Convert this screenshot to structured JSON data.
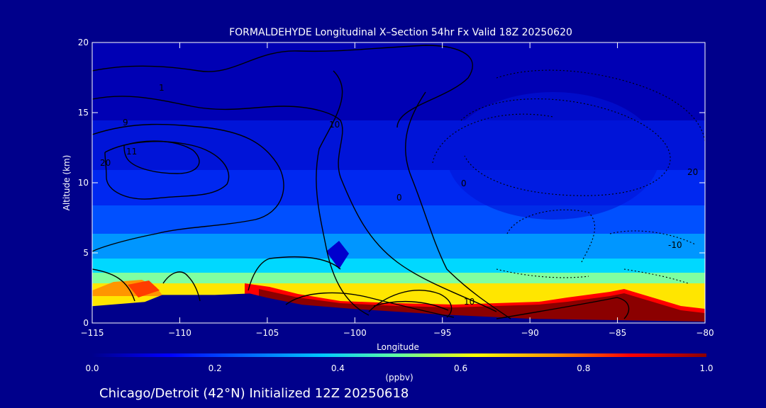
{
  "chart_data": {
    "type": "heatmap",
    "title": "FORMALDEHYDE Longitudinal X–Section 54hr  Fx Valid 18Z 20250620",
    "xlabel": "Longitude",
    "ylabel": "Altitude (km)",
    "xlim": [
      -115,
      -80
    ],
    "ylim": [
      0,
      20
    ],
    "x_ticks": [
      "−115",
      "−110",
      "−105",
      "−100",
      "−95",
      "−90",
      "−85",
      "−80"
    ],
    "y_ticks": [
      "0",
      "5",
      "10",
      "15",
      "20"
    ],
    "colorbar": {
      "label": "(ppbv)",
      "range": [
        0.0,
        1.0
      ],
      "ticks": [
        "0.0",
        "0.2",
        "0.4",
        "0.6",
        "0.8",
        "1.0"
      ],
      "colors": [
        "#00008b",
        "#0000ff",
        "#0064ff",
        "#00c8ff",
        "#64ffa0",
        "#ffff00",
        "#ff9600",
        "#ff0000",
        "#8b0000"
      ]
    },
    "terrain": [
      {
        "lon": -115,
        "alt": 1.2
      },
      {
        "lon": -112,
        "alt": 1.5
      },
      {
        "lon": -111,
        "alt": 2.0
      },
      {
        "lon": -108,
        "alt": 2.0
      },
      {
        "lon": -106,
        "alt": 2.1
      },
      {
        "lon": -105,
        "alt": 1.8
      },
      {
        "lon": -103,
        "alt": 1.3
      },
      {
        "lon": -100,
        "alt": 1.0
      },
      {
        "lon": -95,
        "alt": 0.6
      },
      {
        "lon": -90,
        "alt": 0.3
      },
      {
        "lon": -85,
        "alt": 0.2
      },
      {
        "lon": -80,
        "alt": 0.1
      }
    ],
    "near_surface_hcho_ppbv": [
      {
        "lon": -114,
        "value": 0.62
      },
      {
        "lon": -112,
        "value": 0.78
      },
      {
        "lon": -110,
        "value": 0.5
      },
      {
        "lon": -106,
        "value": 0.6
      },
      {
        "lon": -104,
        "value": 1.0
      },
      {
        "lon": -100,
        "value": 1.0
      },
      {
        "lon": -95,
        "value": 1.0
      },
      {
        "lon": -90,
        "value": 1.0
      },
      {
        "lon": -85,
        "value": 1.0
      },
      {
        "lon": -80,
        "value": 0.9
      }
    ],
    "contour_labels": [
      "1",
      "9",
      "11",
      "20",
      "10",
      "0",
      "20",
      "-10",
      "10",
      "0"
    ]
  },
  "footer": {
    "caption": "Chicago/Detroit (42°N) Initialized 12Z 20250618"
  }
}
